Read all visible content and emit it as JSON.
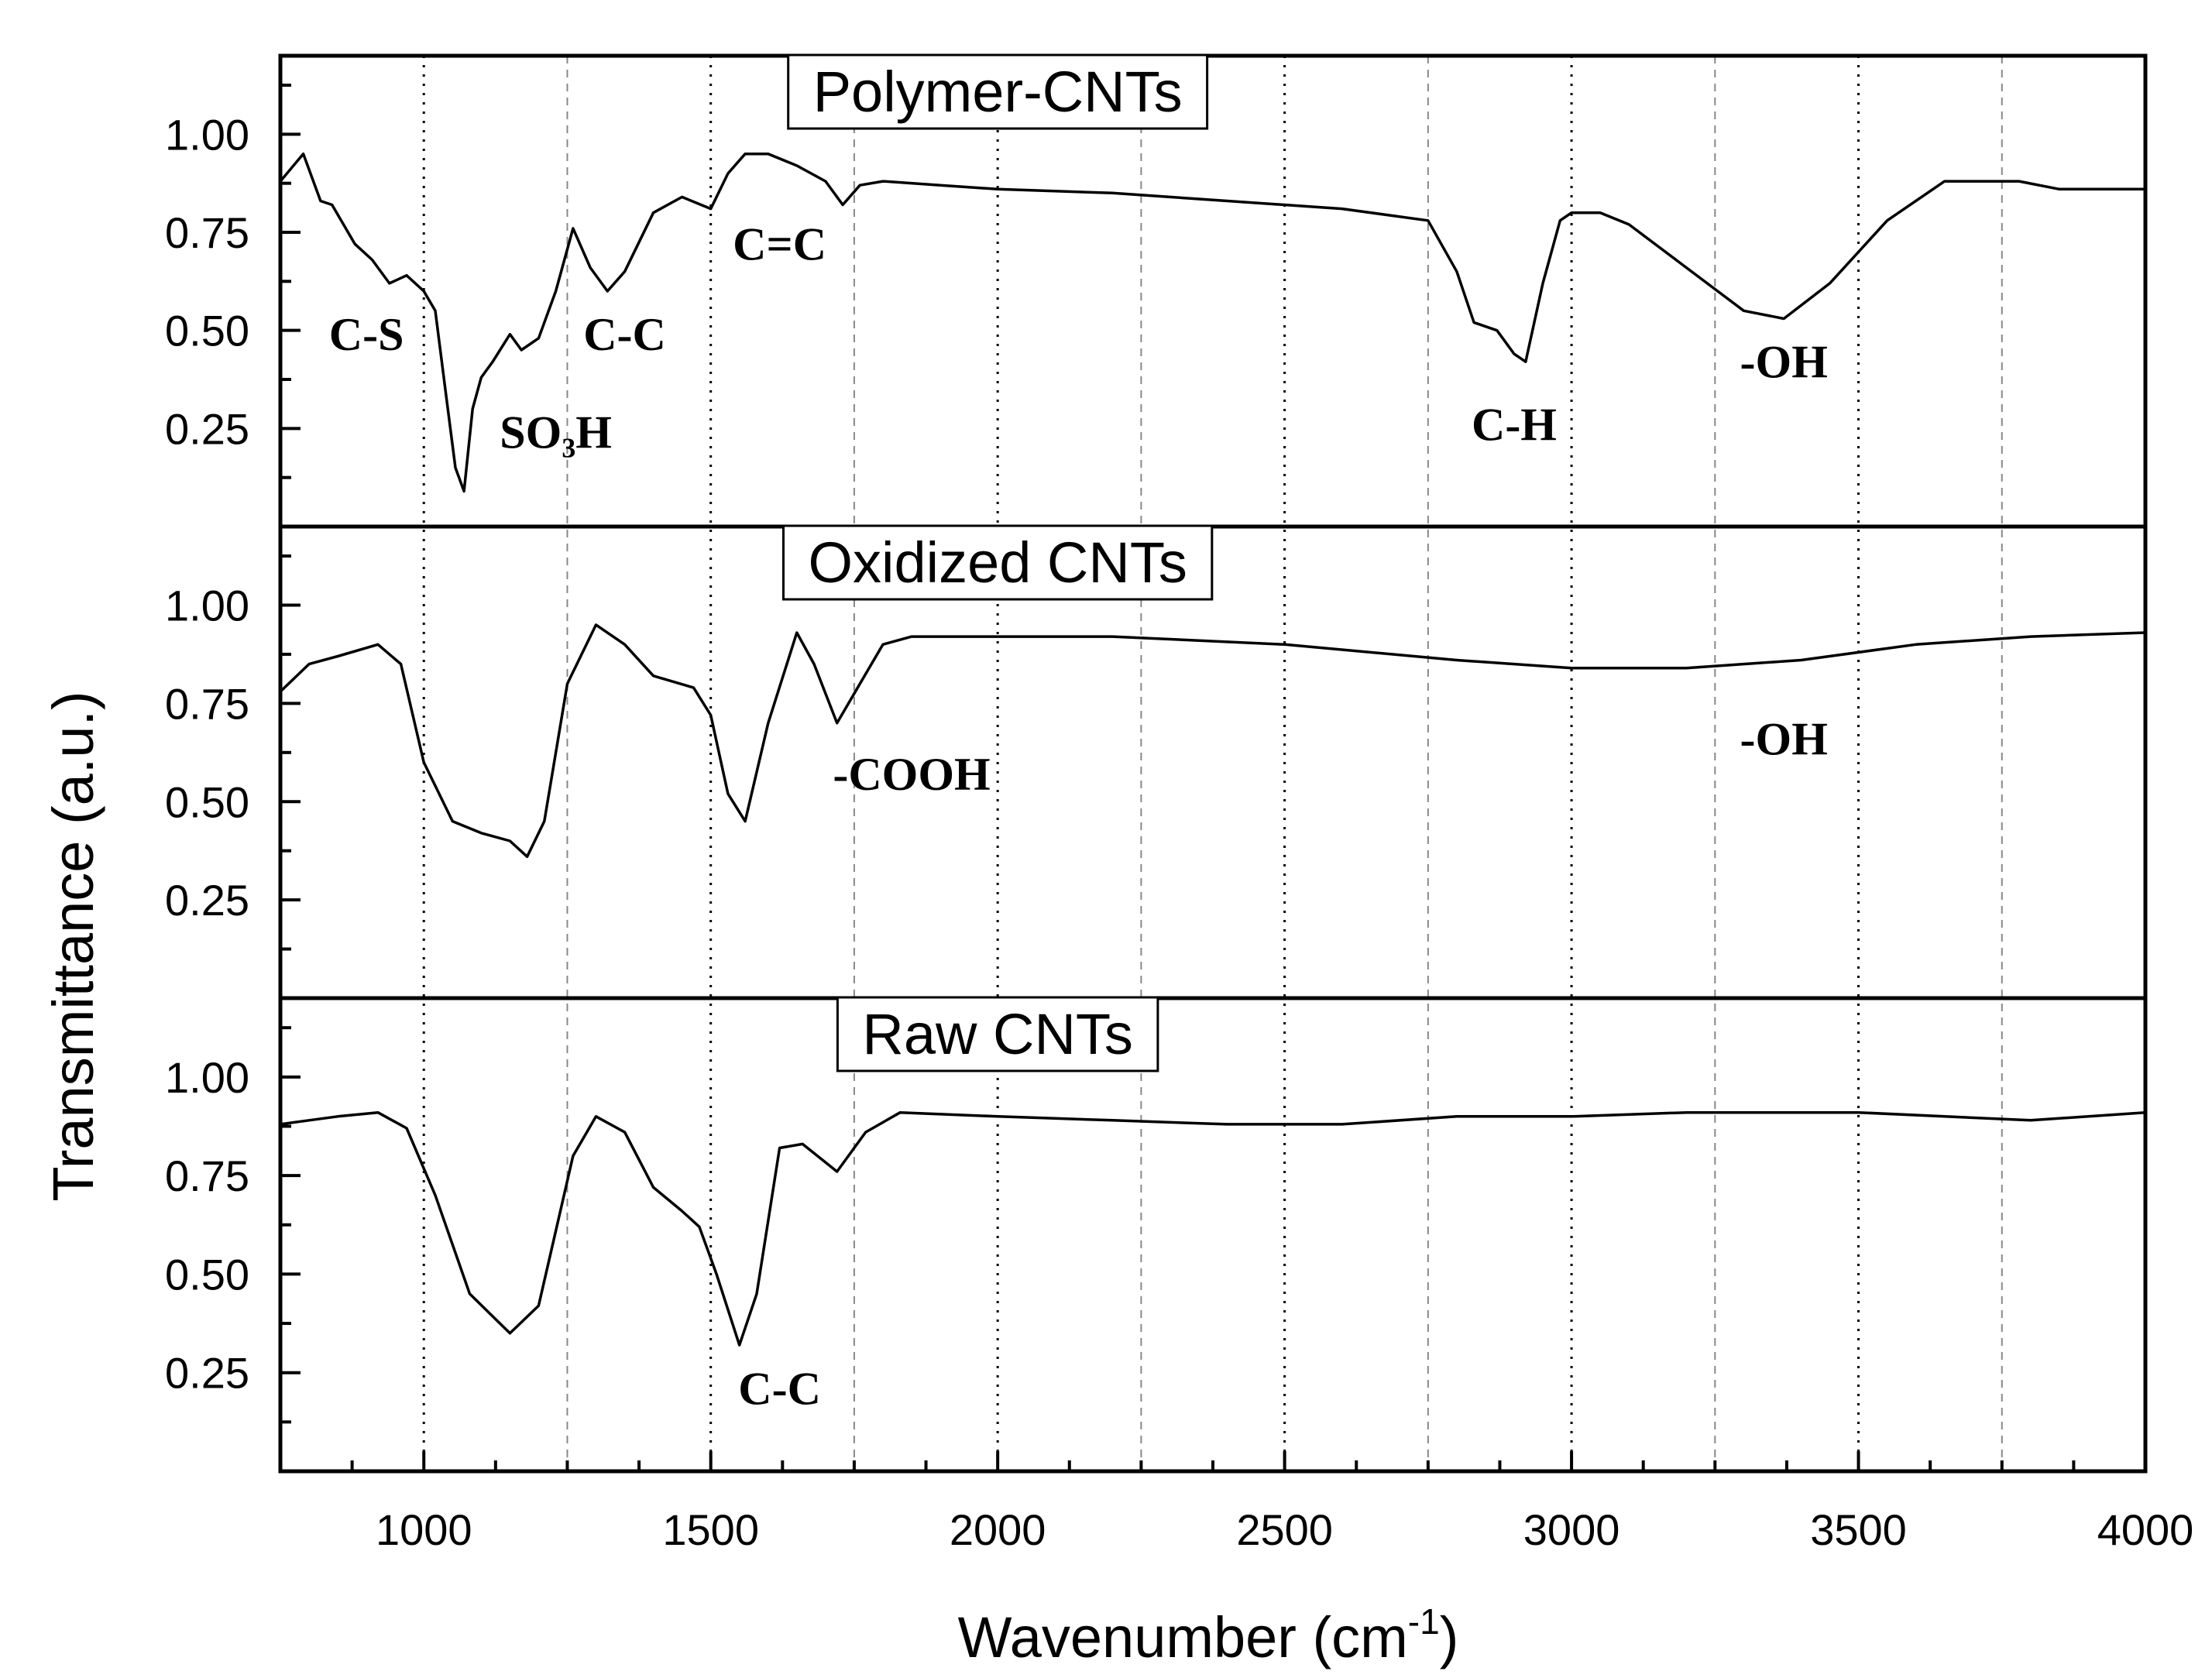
{
  "chart_data": {
    "type": "line",
    "xlabel": "Wavenumber (cm",
    "xlabel_sup": "-1",
    "xlabel_close": ")",
    "ylabel": "Transmittance (a.u.)",
    "xlim": [
      750,
      4000
    ],
    "ylim": [
      0,
      1.2
    ],
    "x_ticks": [
      1000,
      1500,
      2000,
      2500,
      3000,
      3500,
      4000
    ],
    "x_tick_labels": [
      "1000",
      "1500",
      "2000",
      "2500",
      "3000",
      "3500",
      "4000"
    ],
    "x_major_grid": [
      1000,
      1500,
      2000,
      2500,
      3000,
      3500
    ],
    "x_minor_grid": [
      1250,
      1750,
      2250,
      2750,
      3250,
      3750
    ],
    "y_ticks": [
      0.25,
      0.5,
      0.75,
      1.0
    ],
    "y_tick_labels": [
      "0.25",
      "0.50",
      "0.75",
      "1.00"
    ],
    "panels": [
      {
        "name": "Polymer-CNTs",
        "label": "Polymer-CNTs",
        "x": [
          750,
          790,
          820,
          840,
          880,
          910,
          940,
          970,
          1000,
          1020,
          1040,
          1055,
          1070,
          1085,
          1100,
          1120,
          1150,
          1170,
          1200,
          1230,
          1260,
          1290,
          1320,
          1350,
          1400,
          1450,
          1500,
          1530,
          1560,
          1600,
          1650,
          1700,
          1730,
          1760,
          1800,
          1900,
          2000,
          2200,
          2400,
          2600,
          2750,
          2800,
          2830,
          2870,
          2900,
          2920,
          2950,
          2980,
          3000,
          3050,
          3100,
          3200,
          3300,
          3370,
          3450,
          3550,
          3650,
          3700,
          3780,
          3850,
          4000
        ],
        "y": [
          0.88,
          0.95,
          0.83,
          0.82,
          0.72,
          0.68,
          0.62,
          0.64,
          0.6,
          0.55,
          0.32,
          0.15,
          0.09,
          0.3,
          0.38,
          0.42,
          0.49,
          0.45,
          0.48,
          0.6,
          0.76,
          0.66,
          0.6,
          0.65,
          0.8,
          0.84,
          0.81,
          0.9,
          0.95,
          0.95,
          0.92,
          0.88,
          0.82,
          0.87,
          0.88,
          0.87,
          0.86,
          0.85,
          0.83,
          0.81,
          0.78,
          0.65,
          0.52,
          0.5,
          0.44,
          0.42,
          0.62,
          0.78,
          0.8,
          0.8,
          0.77,
          0.66,
          0.55,
          0.53,
          0.62,
          0.78,
          0.88,
          0.88,
          0.88,
          0.86,
          0.86
        ],
        "annotations": [
          {
            "text": "C-S",
            "x": 900,
            "y": 0.45
          },
          {
            "text": "SO₃H",
            "x": 1230,
            "y": 0.2
          },
          {
            "text": "C-C",
            "x": 1350,
            "y": 0.45
          },
          {
            "text": "C=C",
            "x": 1620,
            "y": 0.68
          },
          {
            "text": "C-H",
            "x": 2900,
            "y": 0.22
          },
          {
            "text": "-OH",
            "x": 3370,
            "y": 0.38
          }
        ]
      },
      {
        "name": "Oxidized CNTs",
        "label": "Oxidized CNTs",
        "x": [
          750,
          800,
          850,
          920,
          960,
          1000,
          1050,
          1100,
          1150,
          1180,
          1210,
          1250,
          1300,
          1350,
          1400,
          1470,
          1500,
          1530,
          1560,
          1600,
          1650,
          1680,
          1720,
          1760,
          1800,
          1850,
          2000,
          2200,
          2500,
          2800,
          3000,
          3200,
          3400,
          3600,
          3800,
          4000
        ],
        "y": [
          0.78,
          0.85,
          0.87,
          0.9,
          0.85,
          0.6,
          0.45,
          0.42,
          0.4,
          0.36,
          0.45,
          0.8,
          0.95,
          0.9,
          0.82,
          0.79,
          0.72,
          0.52,
          0.45,
          0.7,
          0.93,
          0.85,
          0.7,
          0.8,
          0.9,
          0.92,
          0.92,
          0.92,
          0.9,
          0.86,
          0.84,
          0.84,
          0.86,
          0.9,
          0.92,
          0.93
        ],
        "annotations": [
          {
            "text": "-COOH",
            "x": 1850,
            "y": 0.53
          },
          {
            "text": "-OH",
            "x": 3370,
            "y": 0.62
          }
        ]
      },
      {
        "name": "Raw CNTs",
        "label": "Raw CNTs",
        "x": [
          750,
          800,
          850,
          920,
          970,
          1020,
          1080,
          1150,
          1200,
          1260,
          1300,
          1350,
          1400,
          1450,
          1480,
          1510,
          1550,
          1580,
          1620,
          1660,
          1720,
          1770,
          1830,
          2000,
          2200,
          2400,
          2600,
          2800,
          3000,
          3200,
          3500,
          3800,
          4000
        ],
        "y": [
          0.88,
          0.89,
          0.9,
          0.91,
          0.87,
          0.7,
          0.45,
          0.35,
          0.42,
          0.8,
          0.9,
          0.86,
          0.72,
          0.66,
          0.62,
          0.5,
          0.32,
          0.45,
          0.82,
          0.83,
          0.76,
          0.86,
          0.91,
          0.9,
          0.89,
          0.88,
          0.88,
          0.9,
          0.9,
          0.91,
          0.91,
          0.89,
          0.91
        ],
        "annotations": [
          {
            "text": "C-C",
            "x": 1620,
            "y": 0.17
          }
        ]
      }
    ]
  }
}
